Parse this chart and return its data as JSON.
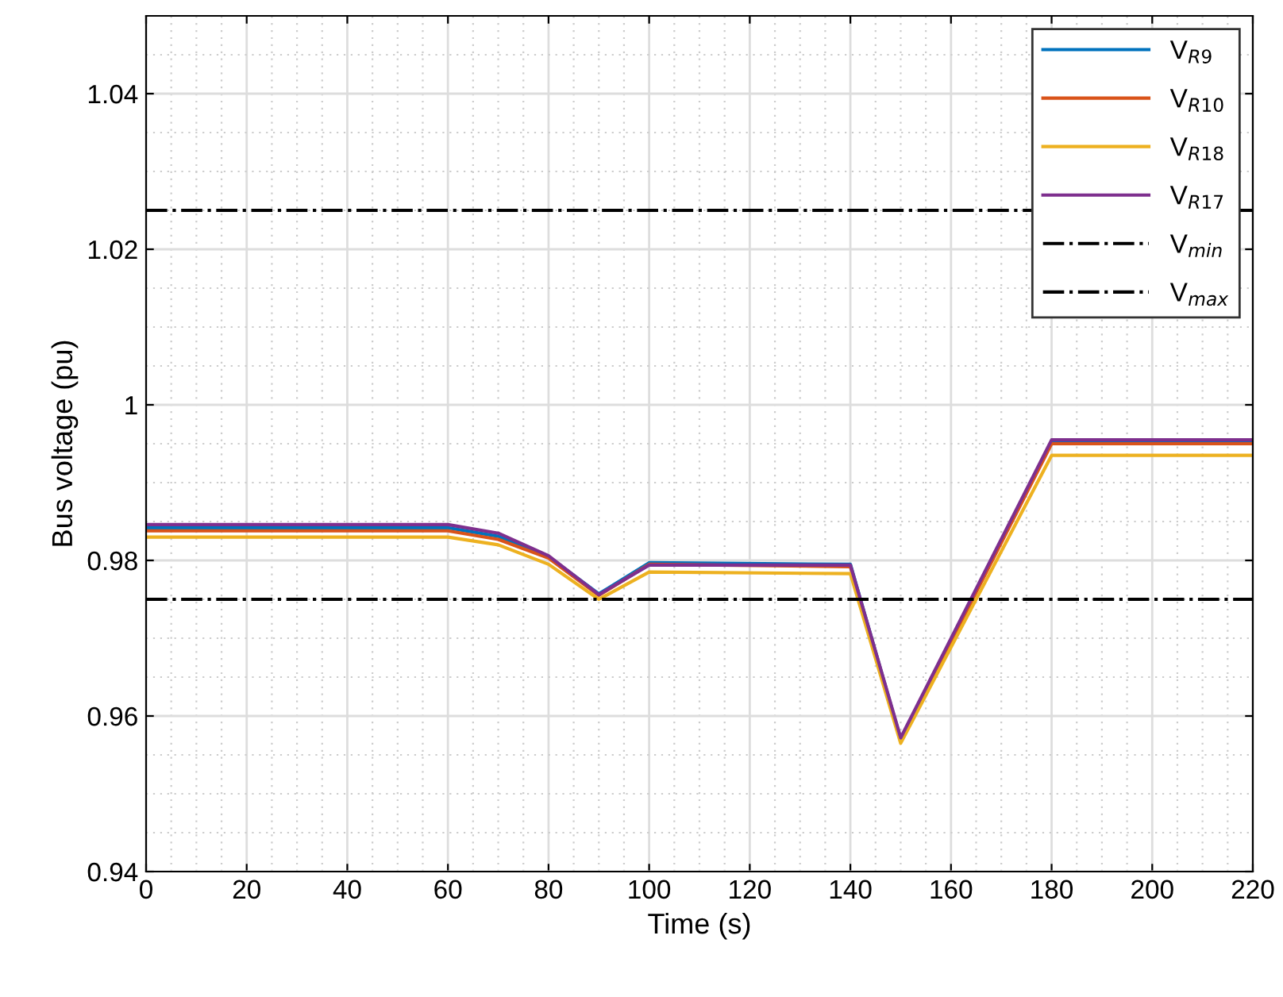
{
  "chart_data": {
    "type": "line",
    "xlabel": "Time (s)",
    "ylabel": "Bus voltage (pu)",
    "x": [
      0,
      60,
      70,
      80,
      90,
      100,
      140,
      150,
      180,
      220
    ],
    "series": [
      {
        "name": "V$_{R9}$",
        "color": "#0072bd",
        "values": [
          0.9842,
          0.9842,
          0.9831,
          0.9805,
          0.9757,
          0.9797,
          0.9795,
          0.957,
          0.9953,
          0.9953
        ]
      },
      {
        "name": "V$_{R10}$",
        "color": "#d95319",
        "values": [
          0.9838,
          0.9838,
          0.9827,
          0.9803,
          0.9755,
          0.9795,
          0.9792,
          0.9568,
          0.995,
          0.995
        ]
      },
      {
        "name": "V$_{R18}$",
        "color": "#edb120",
        "values": [
          0.983,
          0.983,
          0.982,
          0.9795,
          0.975,
          0.9785,
          0.9783,
          0.9565,
          0.9935,
          0.9935
        ]
      },
      {
        "name": "V$_{R17}$",
        "color": "#7e2f8e",
        "values": [
          0.9846,
          0.9846,
          0.9835,
          0.9806,
          0.9756,
          0.9794,
          0.9794,
          0.9572,
          0.9955,
          0.9955
        ]
      }
    ],
    "ref_lines": [
      {
        "axis": "y",
        "value": 0.975,
        "label": "V$_{min}$",
        "color": "#000000",
        "line_style": "dashdot"
      },
      {
        "axis": "y",
        "value": 1.025,
        "label": "V$_{max}$",
        "color": "#000000",
        "line_style": "dashdot"
      }
    ],
    "xlim": [
      0,
      220
    ],
    "xticks": [
      0,
      20,
      40,
      60,
      80,
      100,
      120,
      140,
      160,
      180,
      200,
      220
    ],
    "ylim": [
      0.94,
      1.05
    ],
    "yticks": [
      0.94,
      0.96,
      0.98,
      {
        "value": 1.0,
        "label": "1"
      },
      1.02,
      1.04
    ],
    "grid": true,
    "legend": "top right",
    "line_style": "solid",
    "marker": "none"
  }
}
